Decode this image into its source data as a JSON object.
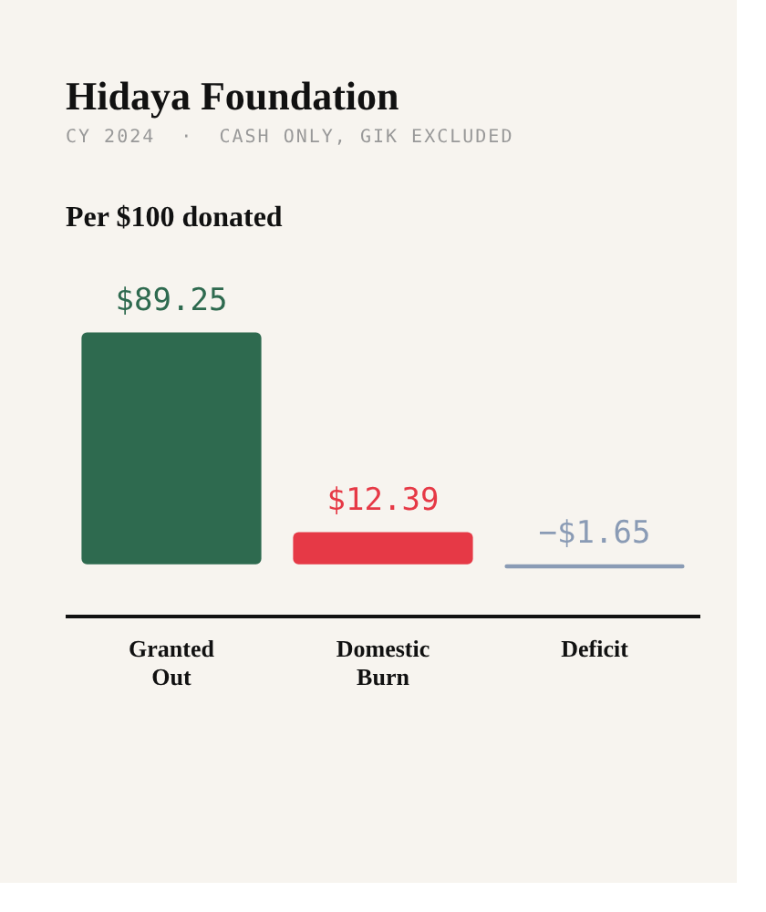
{
  "chart_data": {
    "type": "bar",
    "title": "Hidaya Foundation",
    "subtitle": "CY 2024  ·  CASH ONLY, GIK EXCLUDED",
    "annotations": [
      "Per $100 donated"
    ],
    "categories": [
      "Granted Out",
      "Domestic Burn",
      "Deficit"
    ],
    "values": [
      89.25,
      12.39,
      -1.65
    ],
    "colors": [
      "#2e6a4f",
      "#e63946",
      "#8a9bb5"
    ],
    "value_labels": [
      "$89.25",
      "$12.39",
      "−$1.65"
    ]
  }
}
